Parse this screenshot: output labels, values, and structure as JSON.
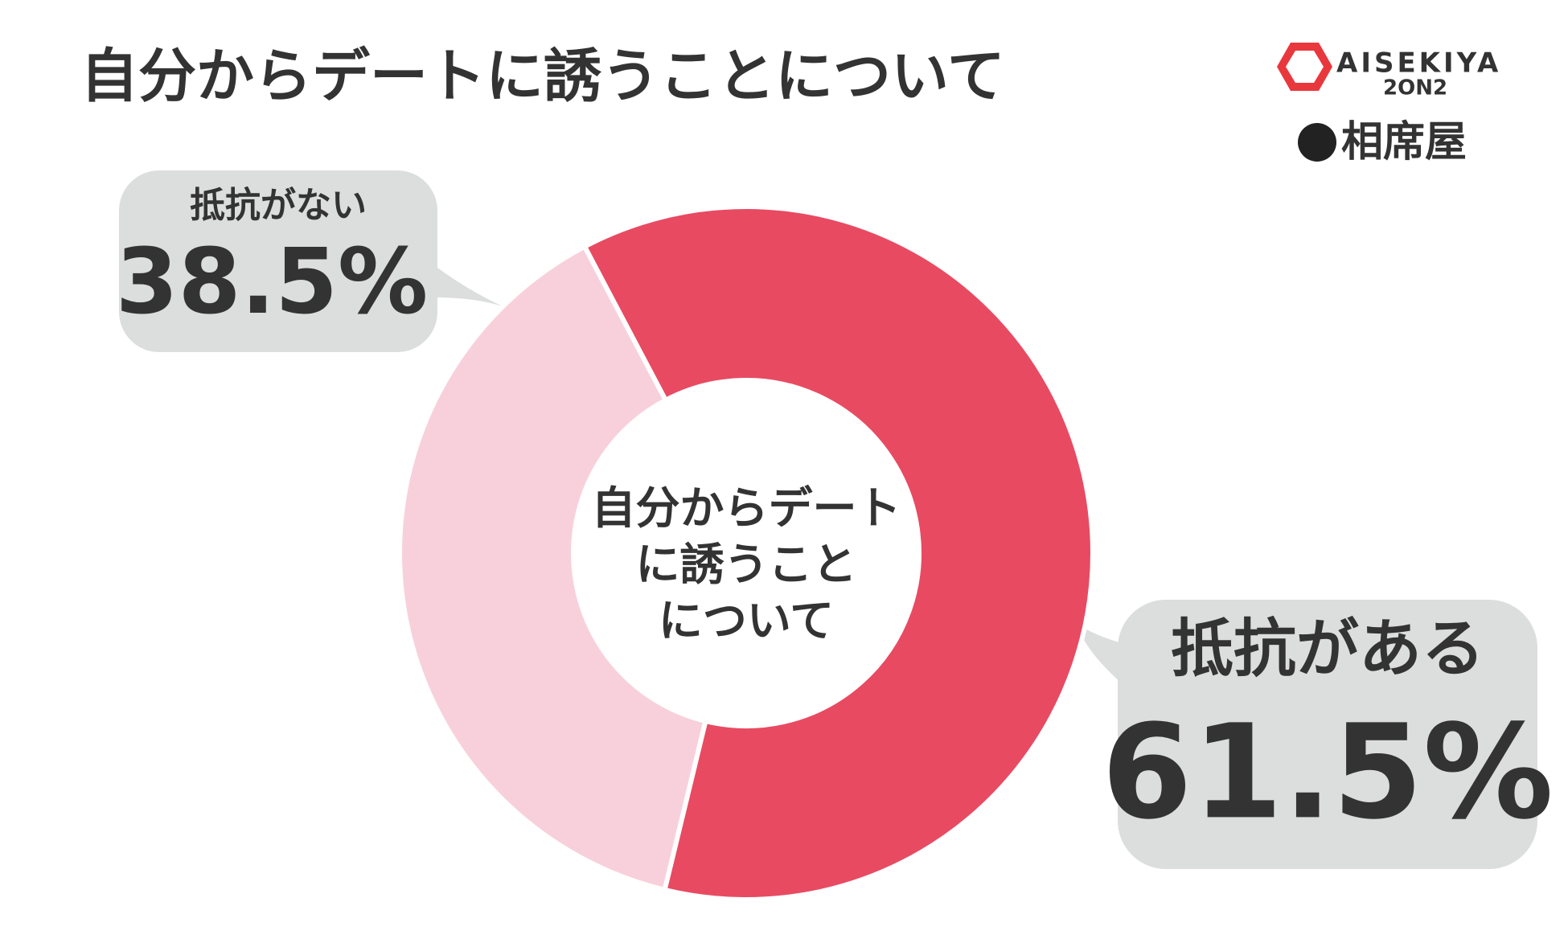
{
  "chart_data": {
    "type": "pie",
    "title": "自分からデートに誘うことについて",
    "center_label": [
      "自分からデート",
      "に誘うこと",
      "について"
    ],
    "categories": [
      "抵抗がある",
      "抵抗がない"
    ],
    "values": [
      61.5,
      38.5
    ],
    "value_labels": [
      "61.5%",
      "38.5%"
    ],
    "colors": [
      "#e84a62",
      "#f8d0db"
    ]
  },
  "logo": {
    "brand": "AISEKIYA",
    "sub": "2ON2",
    "name": "相席屋"
  }
}
